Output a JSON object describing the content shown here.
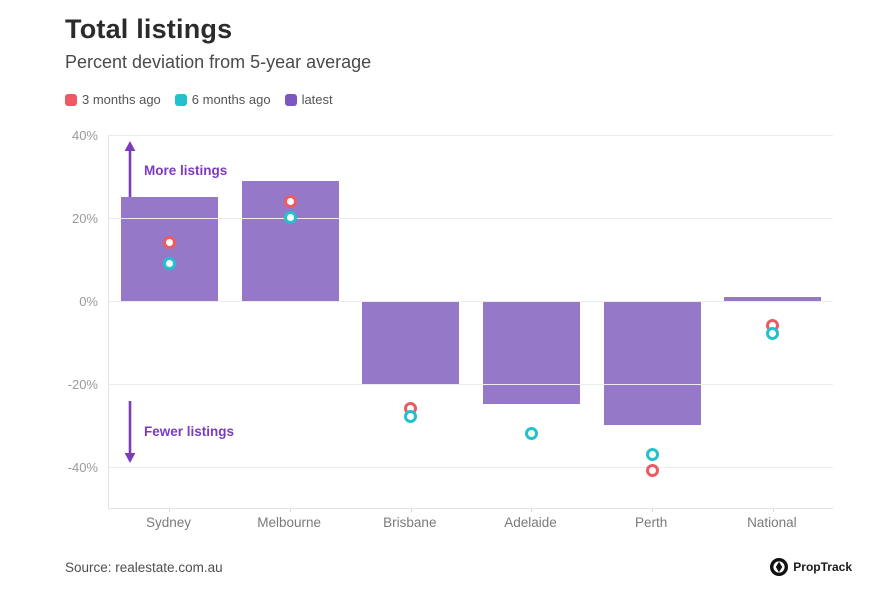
{
  "header": {
    "title": "Total listings",
    "subtitle": "Percent deviation from 5-year average"
  },
  "legend": [
    {
      "label": "3 months ago",
      "color": "#ee5a63"
    },
    {
      "label": "6 months ago",
      "color": "#22c1cd"
    },
    {
      "label": "latest",
      "color": "#7d56c1"
    }
  ],
  "chart_data": {
    "type": "bar",
    "title": "Total listings",
    "subtitle": "Percent deviation from 5-year average",
    "ylabel": "Percent deviation from 5-year average (%)",
    "xlabel": "",
    "ylim": [
      -50,
      40
    ],
    "grid": true,
    "legend_position": "top-left",
    "categories": [
      "Sydney",
      "Melbourne",
      "Brisbane",
      "Adelaide",
      "Perth",
      "National"
    ],
    "yticks": [
      {
        "value": 40,
        "label": "40%"
      },
      {
        "value": 20,
        "label": "20%"
      },
      {
        "value": 0,
        "label": "0%"
      },
      {
        "value": -20,
        "label": "-20%"
      },
      {
        "value": -40,
        "label": "-40%"
      }
    ],
    "series": [
      {
        "name": "latest",
        "render": "bar",
        "color": "#9678c8",
        "values": [
          25,
          29,
          -20,
          -25,
          -30,
          1
        ]
      },
      {
        "name": "3 months ago",
        "render": "marker",
        "color": "#ee5a63",
        "values": [
          14,
          24,
          -26,
          null,
          -41,
          -6
        ]
      },
      {
        "name": "6 months ago",
        "render": "marker",
        "color": "#22c1cd",
        "values": [
          9,
          20,
          -28,
          -32,
          -37,
          -8
        ]
      }
    ],
    "annotations": [
      {
        "text": "More listings",
        "direction": "up"
      },
      {
        "text": "Fewer listings",
        "direction": "down"
      }
    ]
  },
  "annotations": {
    "more": "More listings",
    "fewer": "Fewer listings"
  },
  "footer": {
    "source": "Source: realestate.com.au",
    "brand": "PropTrack"
  },
  "colors": {
    "bar": "#9678c8",
    "marker_3m": "#ee5a63",
    "marker_6m": "#22c1cd",
    "annotation": "#7c3bbf"
  }
}
